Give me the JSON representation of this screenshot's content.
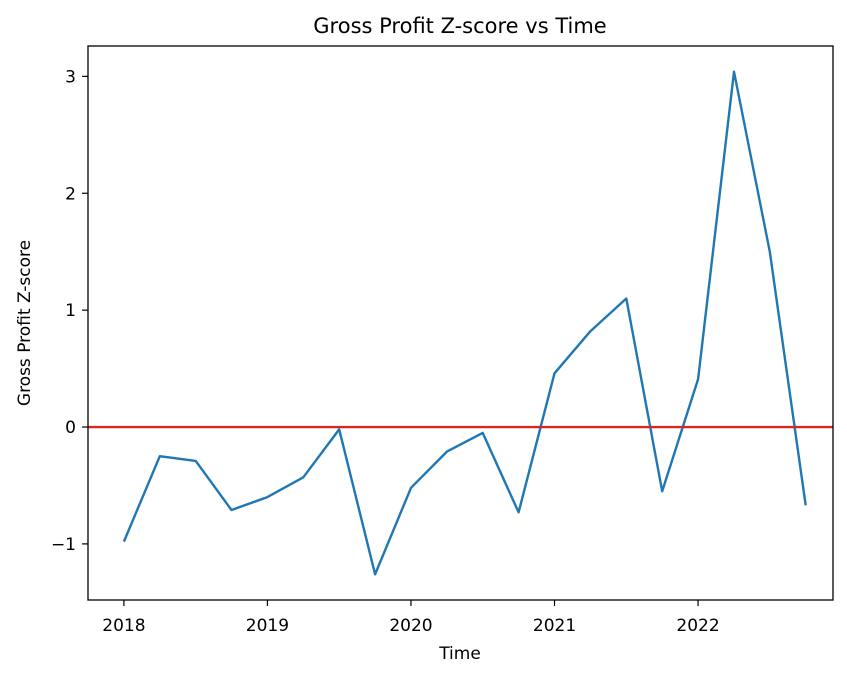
{
  "chart_data": {
    "type": "line",
    "title": "Gross Profit Z-score vs Time",
    "xlabel": "Time",
    "ylabel": "Gross Profit Z-score",
    "x_ticks": [
      2018,
      2019,
      2020,
      2021,
      2022
    ],
    "x_tick_labels": [
      "2018",
      "2019",
      "2020",
      "2021",
      "2022"
    ],
    "y_ticks": [
      -1,
      0,
      1,
      2,
      3
    ],
    "y_tick_labels": [
      "−1",
      "0",
      "1",
      "2",
      "3"
    ],
    "xlim": [
      2017.75,
      2022.94
    ],
    "ylim": [
      -1.48,
      3.26
    ],
    "grid": false,
    "reference_line": {
      "y": 0,
      "color": "#d62728"
    },
    "series": [
      {
        "color": "#1f77b4",
        "x": [
          "2018-01",
          "2018-04",
          "2018-07",
          "2018-10",
          "2019-01",
          "2019-04",
          "2019-07",
          "2019-10",
          "2020-01",
          "2020-04",
          "2020-07",
          "2020-10",
          "2021-01",
          "2021-04",
          "2021-07",
          "2021-10",
          "2022-01",
          "2022-04",
          "2022-07",
          "2022-10"
        ],
        "values": [
          -0.98,
          -0.25,
          -0.29,
          -0.71,
          -0.6,
          -0.43,
          -0.02,
          -1.26,
          -0.52,
          -0.21,
          -0.05,
          -0.73,
          0.46,
          0.82,
          1.1,
          -0.55,
          0.41,
          3.04,
          1.5,
          -0.67
        ]
      }
    ]
  }
}
